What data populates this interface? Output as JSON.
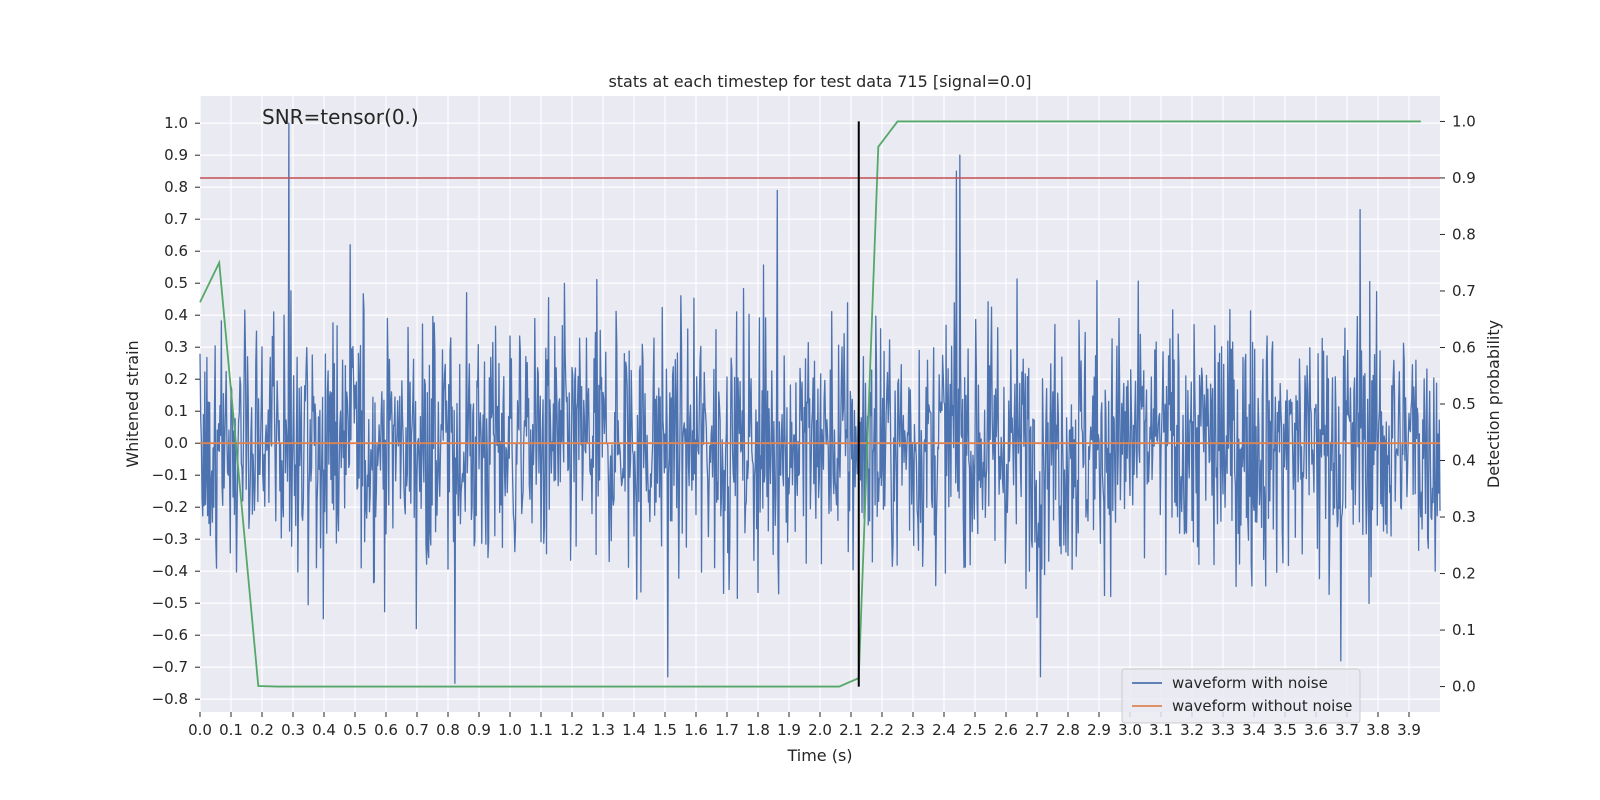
{
  "chart_data": {
    "type": "line",
    "title": "stats at each timestep for test data 715 [signal=0.0]",
    "xlabel": "Time (s)",
    "ylabel": "Whitened strain",
    "y2label": "Detection probability",
    "annotation": "SNR=tensor(0.)",
    "xlim": [
      0.0,
      4.0
    ],
    "ylim": [
      -0.84,
      1.085
    ],
    "y2lim": [
      -0.045,
      1.045
    ],
    "x_ticks": [
      0.0,
      0.1,
      0.2,
      0.3,
      0.4,
      0.5,
      0.6,
      0.7,
      0.8,
      0.9,
      1.0,
      1.1,
      1.2,
      1.3,
      1.4,
      1.5,
      1.6,
      1.7,
      1.8,
      1.9,
      2.0,
      2.1,
      2.2,
      2.3,
      2.4,
      2.5,
      2.6,
      2.7,
      2.8,
      2.9,
      3.0,
      3.1,
      3.2,
      3.3,
      3.4,
      3.5,
      3.6,
      3.7,
      3.8,
      3.9
    ],
    "x_tick_labels": [
      "0.0",
      "0.1",
      "0.2",
      "0.3",
      "0.4",
      "0.5",
      "0.6",
      "0.7",
      "0.8",
      "0.9",
      "1.0",
      "1.1",
      "1.2",
      "1.3",
      "1.4",
      "1.5",
      "1.6",
      "1.7",
      "1.8",
      "1.9",
      "2.0",
      "2.1",
      "2.2",
      "2.3",
      "2.4",
      "2.5",
      "2.6",
      "2.7",
      "2.8",
      "2.9",
      "3.0",
      "3.1",
      "3.2",
      "3.3",
      "3.4",
      "3.5",
      "3.6",
      "3.7",
      "3.8",
      "3.9"
    ],
    "y_ticks": [
      1.0,
      0.9,
      0.8,
      0.7,
      0.6,
      0.5,
      0.4,
      0.3,
      0.2,
      0.1,
      0.0,
      -0.1,
      -0.2,
      -0.3,
      -0.4,
      -0.5,
      -0.6,
      -0.7,
      -0.8
    ],
    "y_tick_labels": [
      "1.0",
      "0.9",
      "0.8",
      "0.7",
      "0.6",
      "0.5",
      "0.4",
      "0.3",
      "0.2",
      "0.1",
      "0.0",
      "−0.1",
      "−0.2",
      "−0.3",
      "−0.4",
      "−0.5",
      "−0.6",
      "−0.7",
      "−0.8"
    ],
    "y2_ticks": [
      1.0,
      0.9,
      0.8,
      0.7,
      0.6,
      0.5,
      0.4,
      0.3,
      0.2,
      0.1,
      0.0
    ],
    "y2_tick_labels": [
      "1.0",
      "0.9",
      "0.8",
      "0.7",
      "0.6",
      "0.5",
      "0.4",
      "0.3",
      "0.2",
      "0.1",
      "0.0"
    ],
    "series": [
      {
        "name": "waveform with noise",
        "color": "#4c72b0",
        "axis": "left",
        "kind": "noise",
        "seed": 715,
        "n_points": 1800,
        "std": 0.2,
        "spikes": [
          {
            "x": 0.287,
            "y": 1.0
          },
          {
            "x": 0.822,
            "y": -0.75
          },
          {
            "x": 1.862,
            "y": 0.79
          },
          {
            "x": 2.452,
            "y": 0.9
          },
          {
            "x": 2.44,
            "y": 0.85
          },
          {
            "x": 3.68,
            "y": -0.68
          },
          {
            "x": 3.742,
            "y": 0.73
          },
          {
            "x": 2.71,
            "y": -0.73
          },
          {
            "x": 1.508,
            "y": -0.73
          },
          {
            "x": 0.484,
            "y": 0.62
          }
        ]
      },
      {
        "name": "waveform without noise",
        "color": "#dd8452",
        "axis": "left",
        "x": [
          0.0,
          4.0
        ],
        "y": [
          0.0,
          0.0
        ]
      },
      {
        "name": "detection probability",
        "color": "#55a868",
        "axis": "right",
        "x": [
          0.0,
          0.062,
          0.188,
          0.25,
          0.5,
          1.0,
          1.5,
          1.75,
          2.0,
          2.062,
          2.125,
          2.188,
          2.25,
          2.5,
          3.0,
          3.5,
          3.938
        ],
        "y": [
          0.68,
          0.75,
          0.001,
          0.0,
          0.0,
          0.0,
          0.0,
          0.0,
          0.0,
          0.0,
          0.015,
          0.955,
          1.0,
          1.0,
          1.0,
          1.0,
          1.0
        ]
      }
    ],
    "threshold": {
      "axis": "right",
      "value": 0.9,
      "color": "#c44e52"
    },
    "vertical_marker": {
      "x": 2.125,
      "y_range": [
        0.0,
        1.0
      ],
      "axis": "right",
      "color": "#000000"
    },
    "legend": {
      "placement": "lower-right",
      "entries": [
        {
          "label": "waveform with noise",
          "color": "#4c72b0"
        },
        {
          "label": "waveform without noise",
          "color": "#dd8452"
        }
      ]
    },
    "grid": true,
    "background": "#eaeaf2"
  }
}
